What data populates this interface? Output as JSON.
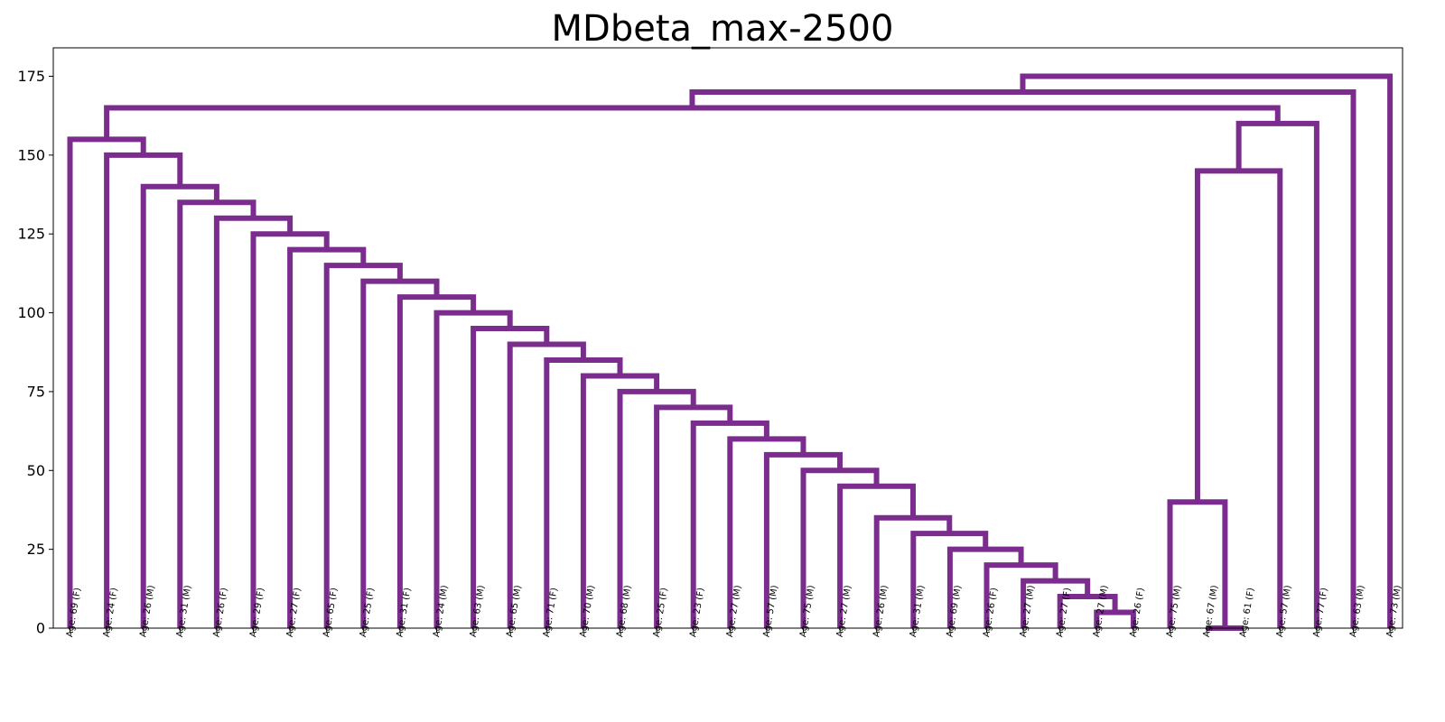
{
  "chart_data": {
    "type": "dendrogram",
    "title": "MDbeta_max-2500",
    "xlabel": "",
    "ylabel": "",
    "ylim": [
      0,
      175
    ],
    "yticks": [
      0,
      25,
      50,
      75,
      100,
      125,
      150,
      175
    ],
    "grid": false,
    "link_color": "#7B2D8E",
    "leaves": [
      "Age: 69 (F)",
      "Age: 24 (F)",
      "Age: 26 (M)",
      "Age: 31 (M)",
      "Age: 26 (F)",
      "Age: 29 (F)",
      "Age: 27 (F)",
      "Age: 65 (F)",
      "Age: 25 (F)",
      "Age: 31 (F)",
      "Age: 24 (M)",
      "Age: 63 (M)",
      "Age: 65 (M)",
      "Age: 71 (F)",
      "Age: 70 (M)",
      "Age: 68 (M)",
      "Age: 25 (F)",
      "Age: 23 (F)",
      "Age: 27 (M)",
      "Age: 57 (M)",
      "Age: 75 (M)",
      "Age: 27 (M)",
      "Age: 26 (M)",
      "Age: 31 (M)",
      "Age: 69 (M)",
      "Age: 26 (F)",
      "Age: 27 (M)",
      "Age: 27 (F)",
      "Age: 27 (M)",
      "Age: 26 (F)",
      "Age: 75 (M)",
      "Age: 67 (M)",
      "Age: 61 (F)",
      "Age: 57 (M)",
      "Age: 77 (F)",
      "Age: 63 (M)",
      "Age: 73 (M)"
    ],
    "merges": [
      {
        "left": "leaf:28",
        "right": "leaf:29",
        "height": 5
      },
      {
        "left": "leaf:27",
        "right": "node:0",
        "height": 10
      },
      {
        "left": "leaf:26",
        "right": "node:1",
        "height": 15
      },
      {
        "left": "leaf:25",
        "right": "node:2",
        "height": 20
      },
      {
        "left": "leaf:24",
        "right": "node:3",
        "height": 25
      },
      {
        "left": "leaf:23",
        "right": "node:4",
        "height": 30
      },
      {
        "left": "leaf:22",
        "right": "node:5",
        "height": 35
      },
      {
        "left": "leaf:21",
        "right": "node:6",
        "height": 45
      },
      {
        "left": "leaf:20",
        "right": "node:7",
        "height": 50
      },
      {
        "left": "leaf:19",
        "right": "node:8",
        "height": 55
      },
      {
        "left": "leaf:18",
        "right": "node:9",
        "height": 60
      },
      {
        "left": "leaf:17",
        "right": "node:10",
        "height": 65
      },
      {
        "left": "leaf:16",
        "right": "node:11",
        "height": 70
      },
      {
        "left": "leaf:15",
        "right": "node:12",
        "height": 75
      },
      {
        "left": "leaf:14",
        "right": "node:13",
        "height": 80
      },
      {
        "left": "leaf:13",
        "right": "node:14",
        "height": 85
      },
      {
        "left": "leaf:12",
        "right": "node:15",
        "height": 90
      },
      {
        "left": "leaf:11",
        "right": "node:16",
        "height": 95
      },
      {
        "left": "leaf:10",
        "right": "node:17",
        "height": 100
      },
      {
        "left": "leaf:9",
        "right": "node:18",
        "height": 105
      },
      {
        "left": "leaf:8",
        "right": "node:19",
        "height": 110
      },
      {
        "left": "leaf:7",
        "right": "node:20",
        "height": 115
      },
      {
        "left": "leaf:6",
        "right": "node:21",
        "height": 120
      },
      {
        "left": "leaf:5",
        "right": "node:22",
        "height": 125
      },
      {
        "left": "leaf:4",
        "right": "node:23",
        "height": 130
      },
      {
        "left": "leaf:3",
        "right": "node:24",
        "height": 135
      },
      {
        "left": "leaf:2",
        "right": "node:25",
        "height": 140
      },
      {
        "left": "leaf:1",
        "right": "node:26",
        "height": 150
      },
      {
        "left": "leaf:0",
        "right": "node:27",
        "height": 155
      },
      {
        "left": "leaf:31",
        "right": "leaf:32",
        "height": 0
      },
      {
        "left": "leaf:30",
        "right": "node:29",
        "height": 40
      },
      {
        "left": "node:30",
        "right": "leaf:33",
        "height": 145
      },
      {
        "left": "node:31",
        "right": "leaf:34",
        "height": 160
      },
      {
        "left": "node:28",
        "right": "node:32",
        "height": 165
      },
      {
        "left": "node:33",
        "right": "leaf:35",
        "height": 170
      },
      {
        "left": "node:34",
        "right": "leaf:36",
        "height": 175
      }
    ]
  }
}
